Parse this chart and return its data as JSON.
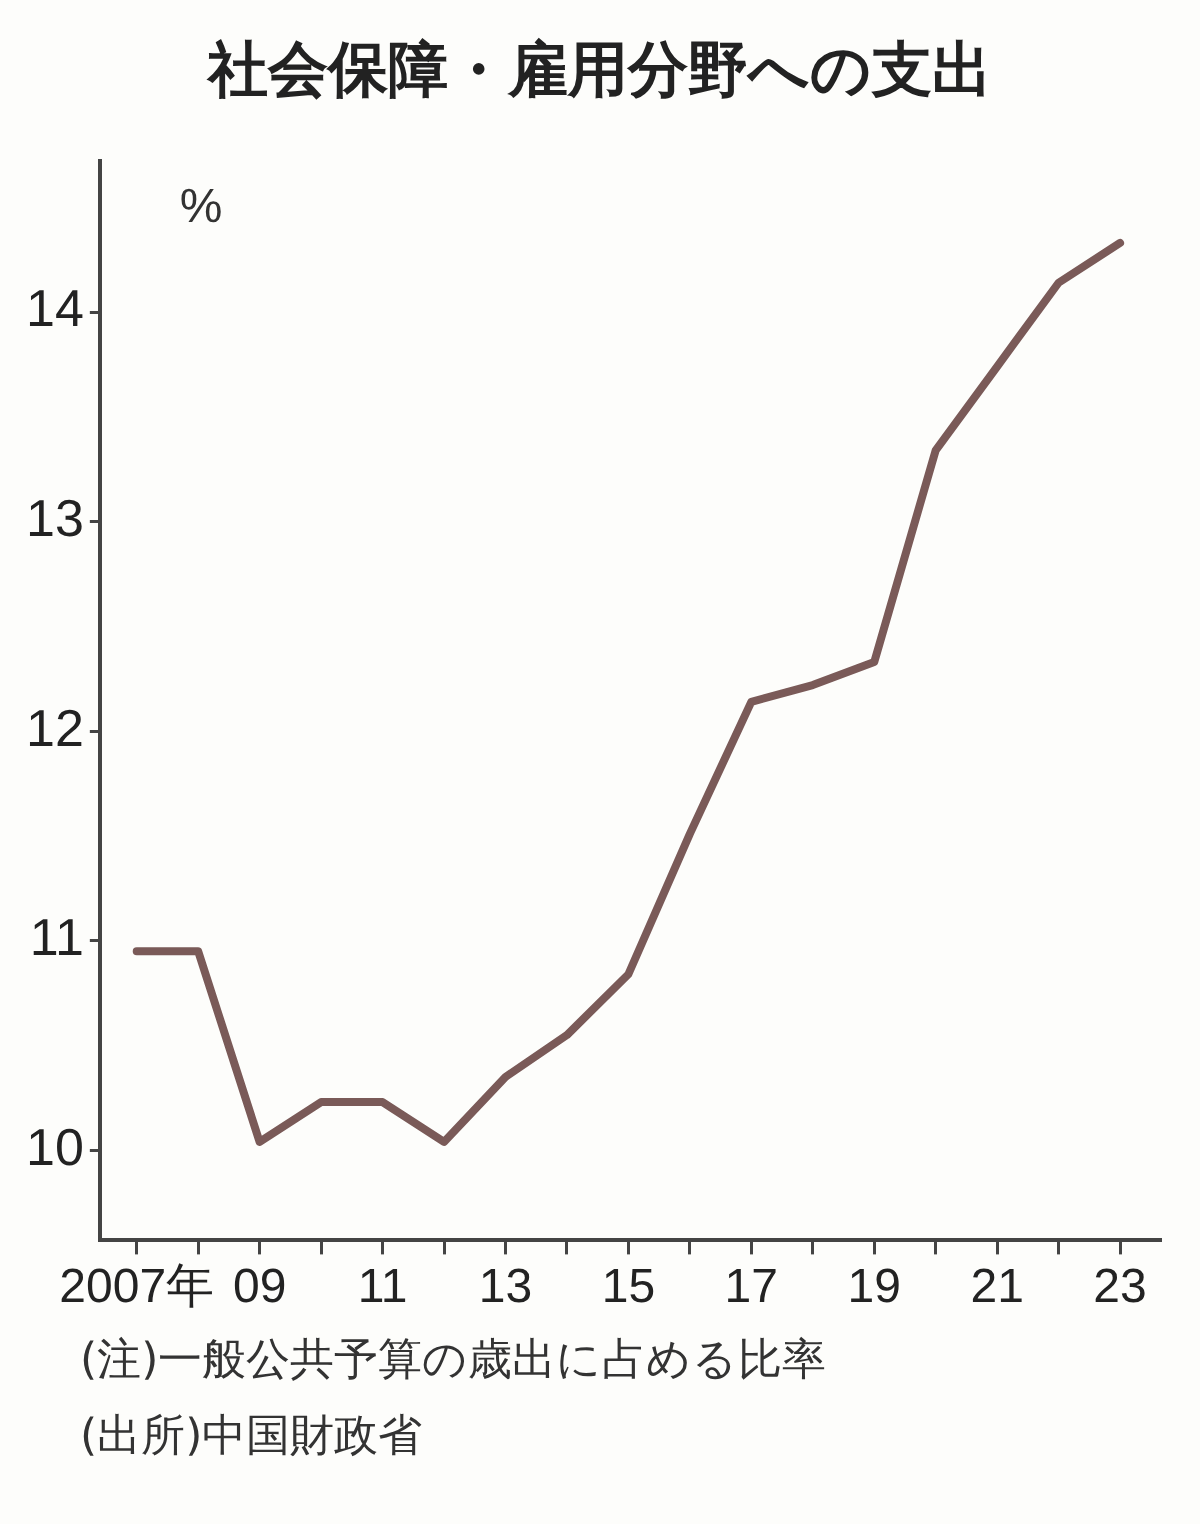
{
  "chart_data": {
    "type": "line",
    "title": "社会保障・雇用分野への支出",
    "ylabel": "%",
    "x": [
      2007,
      2008,
      2009,
      2010,
      2011,
      2012,
      2013,
      2014,
      2015,
      2016,
      2017,
      2018,
      2019,
      2020,
      2021,
      2022,
      2023
    ],
    "series": [
      {
        "color": "#7a5a58",
        "values": [
          10.95,
          10.95,
          10.04,
          10.23,
          10.23,
          10.04,
          10.35,
          10.55,
          10.84,
          11.51,
          12.14,
          12.22,
          12.33,
          13.34,
          13.74,
          14.14,
          14.33
        ]
      }
    ],
    "xlim": [
      2006.4,
      2023.65
    ],
    "xticks": [
      {
        "value": 2007,
        "label": "2007年"
      },
      {
        "value": 2008,
        "label": null
      },
      {
        "value": 2009,
        "label": "09"
      },
      {
        "value": 2010,
        "label": null
      },
      {
        "value": 2011,
        "label": "11"
      },
      {
        "value": 2012,
        "label": null
      },
      {
        "value": 2013,
        "label": "13"
      },
      {
        "value": 2014,
        "label": null
      },
      {
        "value": 2015,
        "label": "15"
      },
      {
        "value": 2016,
        "label": null
      },
      {
        "value": 2017,
        "label": "17"
      },
      {
        "value": 2018,
        "label": null
      },
      {
        "value": 2019,
        "label": "19"
      },
      {
        "value": 2020,
        "label": null
      },
      {
        "value": 2021,
        "label": "21"
      },
      {
        "value": 2022,
        "label": null
      },
      {
        "value": 2023,
        "label": "23"
      }
    ],
    "ylim": [
      9.57,
      14.72
    ],
    "yticks": [
      10,
      11,
      12,
      13,
      14
    ],
    "grid": false,
    "legend": false,
    "marker": "none",
    "line_style": "solid",
    "annotations": [
      "(注)一般公共予算の歳出に占める比率",
      "(出所)中国財政省"
    ]
  }
}
